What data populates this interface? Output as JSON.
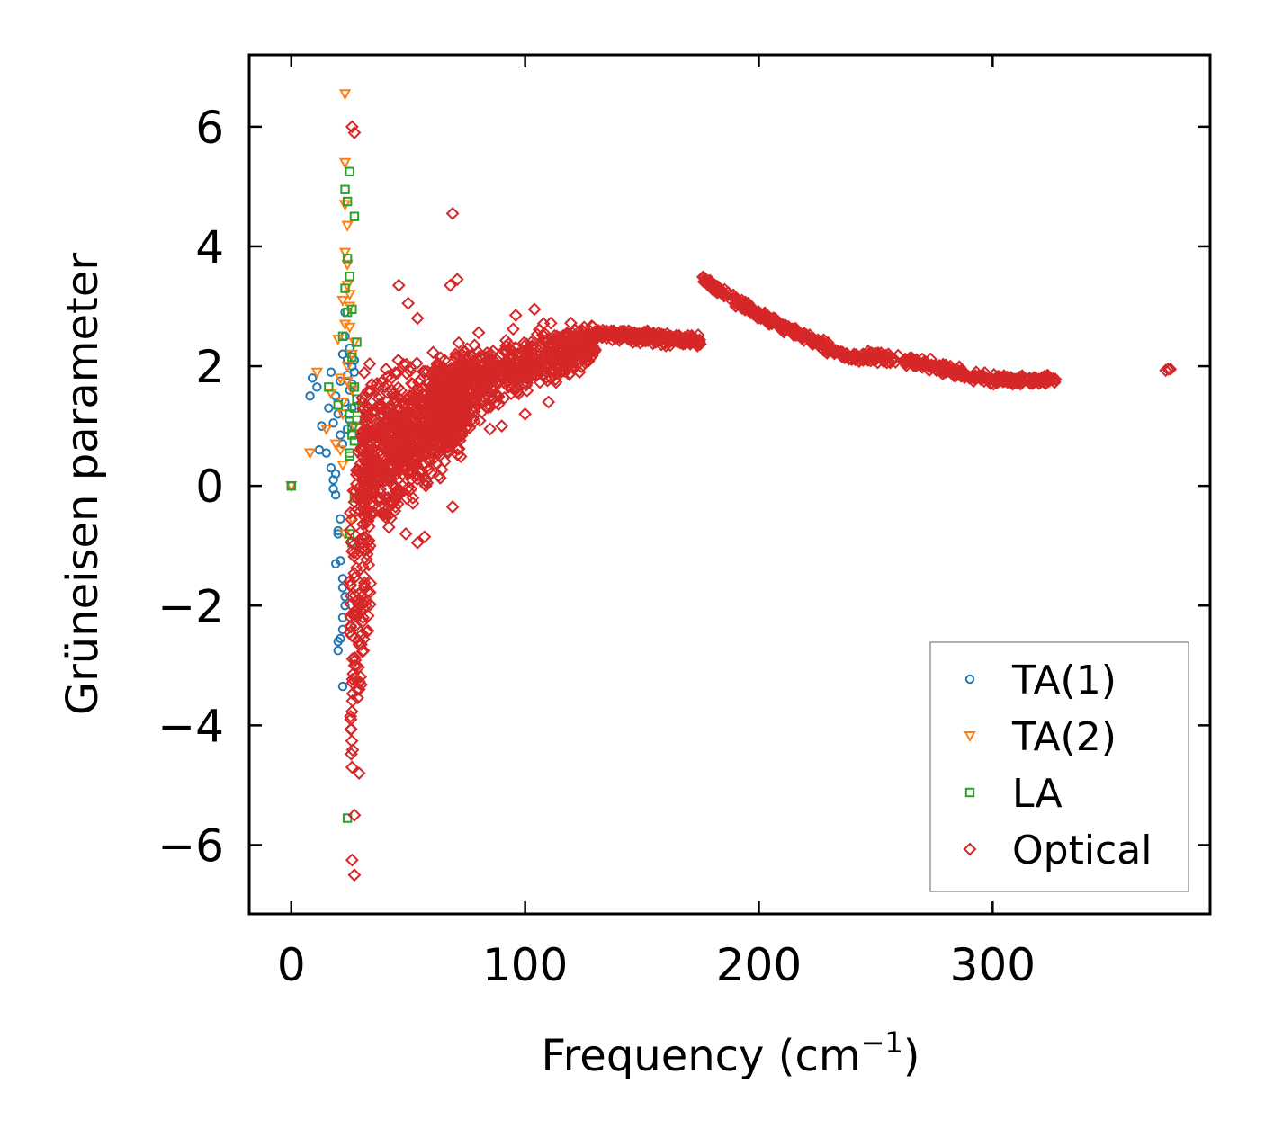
{
  "chart_data": {
    "type": "scatter",
    "title": "",
    "xlabel": "Frequency (cm",
    "xlabel_sup": "−1",
    "xlabel_close": ")",
    "ylabel": "Grüneisen parameter",
    "xlim": [
      -18,
      393
    ],
    "ylim": [
      -7.15,
      7.2
    ],
    "xticks": [
      0,
      100,
      200,
      300
    ],
    "yticks": [
      -6,
      -4,
      -2,
      0,
      2,
      4,
      6
    ],
    "ytick_labels": [
      "−6",
      "−4",
      "−2",
      "0",
      "2",
      "4",
      "6"
    ],
    "legend_position": "lower-right",
    "series": [
      {
        "name": "TA(1)",
        "marker": "circle",
        "color": "#1f77b4",
        "x": [
          0,
          8,
          9,
          11,
          12,
          13,
          15,
          16,
          17,
          17,
          18,
          18,
          19,
          19,
          20,
          20,
          21,
          21,
          21,
          22,
          22,
          22,
          23,
          23,
          23,
          23,
          24,
          24,
          24,
          25,
          25,
          25,
          26,
          26,
          26,
          27,
          27,
          20,
          21,
          22,
          22,
          23,
          19,
          20,
          21,
          22,
          18,
          19,
          20,
          22
        ],
        "y": [
          0.0,
          1.5,
          1.8,
          1.65,
          0.6,
          1.0,
          0.55,
          1.3,
          0.3,
          1.9,
          0.1,
          1.05,
          -0.15,
          1.5,
          -0.8,
          1.2,
          -1.25,
          0.85,
          1.75,
          -1.7,
          0.7,
          2.2,
          -2.0,
          1.4,
          2.5,
          2.9,
          0.95,
          1.85,
          2.1,
          1.1,
          1.6,
          2.3,
          1.3,
          1.7,
          2.0,
          1.9,
          2.1,
          -2.75,
          -2.55,
          -2.4,
          -3.35,
          -1.85,
          -1.3,
          -0.75,
          -0.55,
          -1.55,
          -0.05,
          0.2,
          -2.6,
          -2.2
        ]
      },
      {
        "name": "TA(2)",
        "marker": "triangle-down",
        "color": "#ff7f0e",
        "x": [
          0,
          8,
          11,
          15,
          17,
          19,
          20,
          21,
          22,
          22,
          23,
          23,
          23,
          23,
          24,
          24,
          24,
          25,
          25,
          26,
          26,
          27,
          27,
          21,
          22,
          23,
          24,
          25,
          26,
          22,
          23,
          24
        ],
        "y": [
          0.0,
          0.55,
          1.9,
          0.95,
          1.55,
          0.7,
          2.45,
          1.8,
          3.1,
          1.2,
          6.55,
          5.4,
          4.7,
          3.9,
          4.35,
          3.35,
          2.0,
          3.0,
          2.65,
          1.6,
          2.2,
          2.4,
          1.0,
          0.6,
          1.4,
          2.7,
          3.7,
          3.2,
          -0.55,
          0.35,
          -0.8,
          1.75
        ]
      },
      {
        "name": "LA",
        "marker": "square",
        "color": "#2ca02c",
        "x": [
          0,
          16,
          20,
          22,
          23,
          23,
          24,
          24,
          24,
          25,
          25,
          25,
          25,
          26,
          26,
          26,
          27,
          27,
          27,
          28,
          28,
          28,
          25,
          26,
          27,
          24,
          25,
          26,
          27
        ],
        "y": [
          0.0,
          1.65,
          1.35,
          2.5,
          4.95,
          3.3,
          4.75,
          3.8,
          2.9,
          3.5,
          1.2,
          0.5,
          5.25,
          2.15,
          1.0,
          0.85,
          4.5,
          1.65,
          0.75,
          1.45,
          1.1,
          2.4,
          -0.8,
          -0.95,
          -0.2,
          -5.55,
          0.55,
          2.95,
          1.3
        ]
      },
      {
        "name": "Optical",
        "marker": "diamond",
        "color": "#d62728",
        "x": [],
        "y": []
      }
    ]
  },
  "legend": {
    "items": [
      "TA(1)",
      "TA(2)",
      "LA",
      "Optical"
    ]
  }
}
